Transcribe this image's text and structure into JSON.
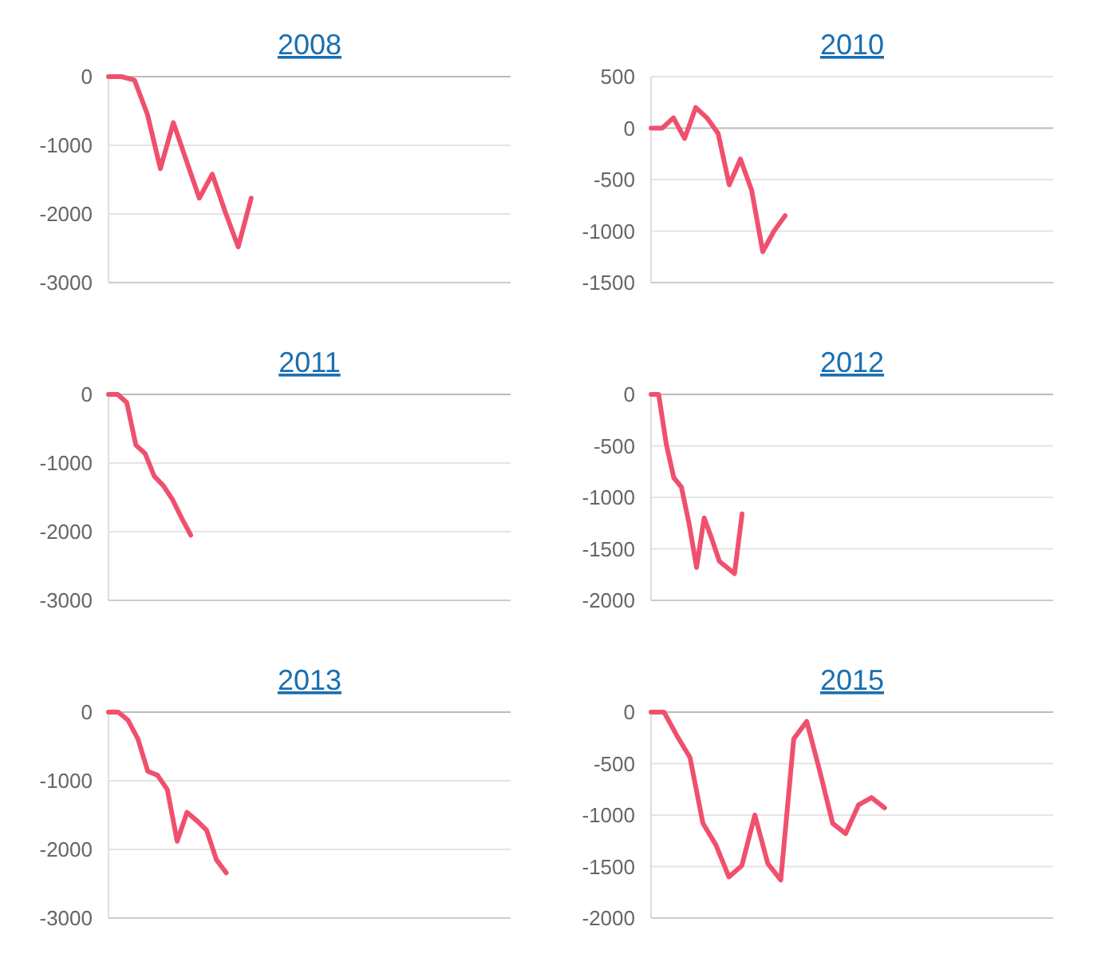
{
  "chart_data": [
    {
      "type": "line",
      "title": "2008",
      "categories": [
        null,
        null,
        null,
        null,
        null,
        null,
        null,
        null,
        null,
        null,
        null,
        null,
        null,
        null,
        null,
        null,
        null,
        null,
        null,
        null,
        null,
        null,
        null,
        null,
        null,
        null,
        null,
        null,
        null,
        null,
        null,
        null
      ],
      "series": [
        {
          "color": "#f0506e",
          "values": [
            0,
            0,
            -50,
            -550,
            -1340,
            -670,
            -1220,
            -1770,
            -1420,
            -1970,
            -2480,
            -1770,
            null,
            null,
            null,
            null,
            null,
            null,
            null,
            null,
            null,
            null,
            null,
            null,
            null,
            null,
            null,
            null,
            null,
            null,
            null,
            null
          ]
        }
      ],
      "ylim": [
        -3000,
        0
      ],
      "yticks": [
        -3000,
        -2000,
        -1000,
        0
      ],
      "grid": "y",
      "tick_labels": "y"
    },
    {
      "type": "line",
      "title": "2010",
      "categories": [
        null,
        null,
        null,
        null,
        null,
        null,
        null,
        null,
        null,
        null,
        null,
        null,
        null,
        null,
        null,
        null,
        null,
        null,
        null,
        null,
        null,
        null,
        null,
        null,
        null,
        null,
        null,
        null,
        null,
        null,
        null,
        null,
        null,
        null,
        null,
        null,
        null
      ],
      "series": [
        {
          "color": "#f0506e",
          "values": [
            0,
            0,
            100,
            -100,
            200,
            100,
            -50,
            -550,
            -300,
            -600,
            -1200,
            -1000,
            -850,
            null,
            null,
            null,
            null,
            null,
            null,
            null,
            null,
            null,
            null,
            null,
            null,
            null,
            null,
            null,
            null,
            null,
            null,
            null,
            null,
            null,
            null,
            null,
            null
          ]
        }
      ],
      "ylim": [
        -1500,
        500
      ],
      "yticks": [
        -1500,
        -1000,
        -500,
        0,
        500
      ],
      "grid": "y",
      "tick_labels": "y"
    },
    {
      "type": "line",
      "title": "2011",
      "categories": [
        null,
        null,
        null,
        null,
        null,
        null,
        null,
        null,
        null,
        null,
        null,
        null,
        null,
        null,
        null,
        null,
        null,
        null,
        null,
        null,
        null,
        null,
        null,
        null,
        null,
        null,
        null,
        null,
        null,
        null,
        null,
        null,
        null,
        null,
        null,
        null,
        null,
        null,
        null,
        null,
        null,
        null,
        null,
        null,
        null
      ],
      "series": [
        {
          "color": "#f0506e",
          "values": [
            0,
            0,
            -120,
            -740,
            -860,
            -1190,
            -1330,
            -1530,
            -1800,
            -2050,
            null,
            null,
            null,
            null,
            null,
            null,
            null,
            null,
            null,
            null,
            null,
            null,
            null,
            null,
            null,
            null,
            null,
            null,
            null,
            null,
            null,
            null,
            null,
            null,
            null,
            null,
            null,
            null,
            null,
            null,
            null,
            null,
            null,
            null,
            null
          ]
        }
      ],
      "ylim": [
        -3000,
        0
      ],
      "yticks": [
        -3000,
        -2000,
        -1000,
        0
      ],
      "grid": "y",
      "tick_labels": "y"
    },
    {
      "type": "line",
      "title": "2012",
      "categories": [
        null,
        null,
        null,
        null,
        null,
        null,
        null,
        null,
        null,
        null,
        null,
        null,
        null,
        null,
        null,
        null,
        null,
        null,
        null,
        null,
        null,
        null,
        null,
        null,
        null,
        null,
        null,
        null,
        null,
        null,
        null,
        null,
        null,
        null,
        null,
        null,
        null,
        null,
        null,
        null,
        null,
        null,
        null,
        null,
        null,
        null,
        null,
        null,
        null,
        null,
        null,
        null,
        null,
        null
      ],
      "series": [
        {
          "color": "#f0506e",
          "values": [
            0,
            0,
            -480,
            -810,
            -900,
            -1250,
            -1680,
            -1200,
            -1400,
            -1620,
            -1680,
            -1740,
            -1160,
            null,
            null,
            null,
            null,
            null,
            null,
            null,
            null,
            null,
            null,
            null,
            null,
            null,
            null,
            null,
            null,
            null,
            null,
            null,
            null,
            null,
            null,
            null,
            null,
            null,
            null,
            null,
            null,
            null,
            null,
            null,
            null,
            null,
            null,
            null,
            null,
            null,
            null,
            null,
            null,
            null
          ]
        }
      ],
      "ylim": [
        -2000,
        0
      ],
      "yticks": [
        -2000,
        -1500,
        -1000,
        -500,
        0
      ],
      "grid": "y",
      "tick_labels": "y"
    },
    {
      "type": "line",
      "title": "2013",
      "categories": [
        null,
        null,
        null,
        null,
        null,
        null,
        null,
        null,
        null,
        null,
        null,
        null,
        null,
        null,
        null,
        null,
        null,
        null,
        null,
        null,
        null,
        null,
        null,
        null,
        null,
        null,
        null,
        null,
        null,
        null,
        null,
        null,
        null,
        null,
        null,
        null,
        null,
        null,
        null,
        null,
        null,
        null
      ],
      "series": [
        {
          "color": "#f0506e",
          "values": [
            0,
            0,
            -120,
            -390,
            -860,
            -920,
            -1130,
            -1880,
            -1460,
            -1580,
            -1720,
            -2150,
            -2340,
            null,
            null,
            null,
            null,
            null,
            null,
            null,
            null,
            null,
            null,
            null,
            null,
            null,
            null,
            null,
            null,
            null,
            null,
            null,
            null,
            null,
            null,
            null,
            null,
            null,
            null,
            null,
            null,
            null
          ]
        }
      ],
      "ylim": [
        -3000,
        0
      ],
      "yticks": [
        -3000,
        -2000,
        -1000,
        0
      ],
      "grid": "y",
      "tick_labels": "y"
    },
    {
      "type": "line",
      "title": "2015",
      "categories": [
        null,
        null,
        null,
        null,
        null,
        null,
        null,
        null,
        null,
        null,
        null,
        null,
        null,
        null,
        null,
        null,
        null,
        null,
        null,
        null,
        null,
        null,
        null,
        null,
        null,
        null,
        null,
        null,
        null,
        null,
        null,
        null
      ],
      "series": [
        {
          "color": "#f0506e",
          "values": [
            0,
            0,
            -230,
            -440,
            -1080,
            -1290,
            -1600,
            -1490,
            -1000,
            -1470,
            -1630,
            -260,
            -90,
            -570,
            -1080,
            -1180,
            -900,
            -830,
            -930,
            null,
            null,
            null,
            null,
            null,
            null,
            null,
            null,
            null,
            null,
            null,
            null,
            null
          ]
        }
      ],
      "ylim": [
        -2000,
        0
      ],
      "yticks": [
        -2000,
        -1500,
        -1000,
        -500,
        0
      ],
      "grid": "y",
      "tick_labels": "y"
    }
  ]
}
